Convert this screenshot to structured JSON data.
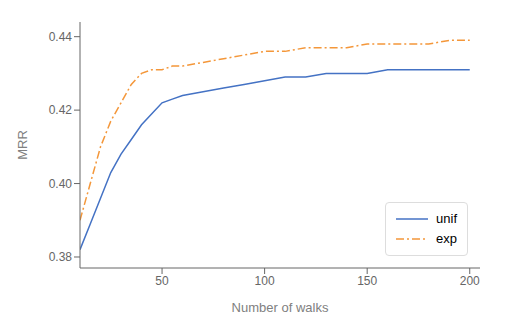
{
  "chart_data": {
    "type": "line",
    "title": "",
    "xlabel": "Number of walks",
    "ylabel": "MRR",
    "xlim": [
      10,
      205
    ],
    "ylim": [
      0.377,
      0.444
    ],
    "xticks": [
      50,
      100,
      150,
      200
    ],
    "yticks": [
      0.38,
      {
        "value": 0.4,
        "label": "0.40"
      },
      0.42,
      0.44
    ],
    "grid": false,
    "legend": "lower right",
    "x": [
      10,
      15,
      20,
      25,
      30,
      35,
      40,
      45,
      50,
      55,
      60,
      70,
      80,
      90,
      100,
      110,
      120,
      130,
      140,
      150,
      160,
      170,
      180,
      190,
      200
    ],
    "series": [
      {
        "name": "unif",
        "color": "#4472c4",
        "line_style": "solid",
        "marker": "none",
        "values": [
          0.382,
          0.389,
          0.396,
          0.403,
          0.408,
          0.412,
          0.416,
          0.419,
          0.422,
          0.423,
          0.424,
          0.425,
          0.426,
          0.427,
          0.428,
          0.429,
          0.429,
          0.43,
          0.43,
          0.43,
          0.431,
          0.431,
          0.431,
          0.431,
          0.431
        ]
      },
      {
        "name": "exp",
        "color": "#f4973a",
        "line_style": "dashdot",
        "marker": "none",
        "values": [
          0.39,
          0.4,
          0.41,
          0.417,
          0.422,
          0.427,
          0.43,
          0.431,
          0.431,
          0.432,
          0.432,
          0.433,
          0.434,
          0.435,
          0.436,
          0.436,
          0.437,
          0.437,
          0.437,
          0.438,
          0.438,
          0.438,
          0.438,
          0.439,
          0.439
        ]
      }
    ]
  }
}
